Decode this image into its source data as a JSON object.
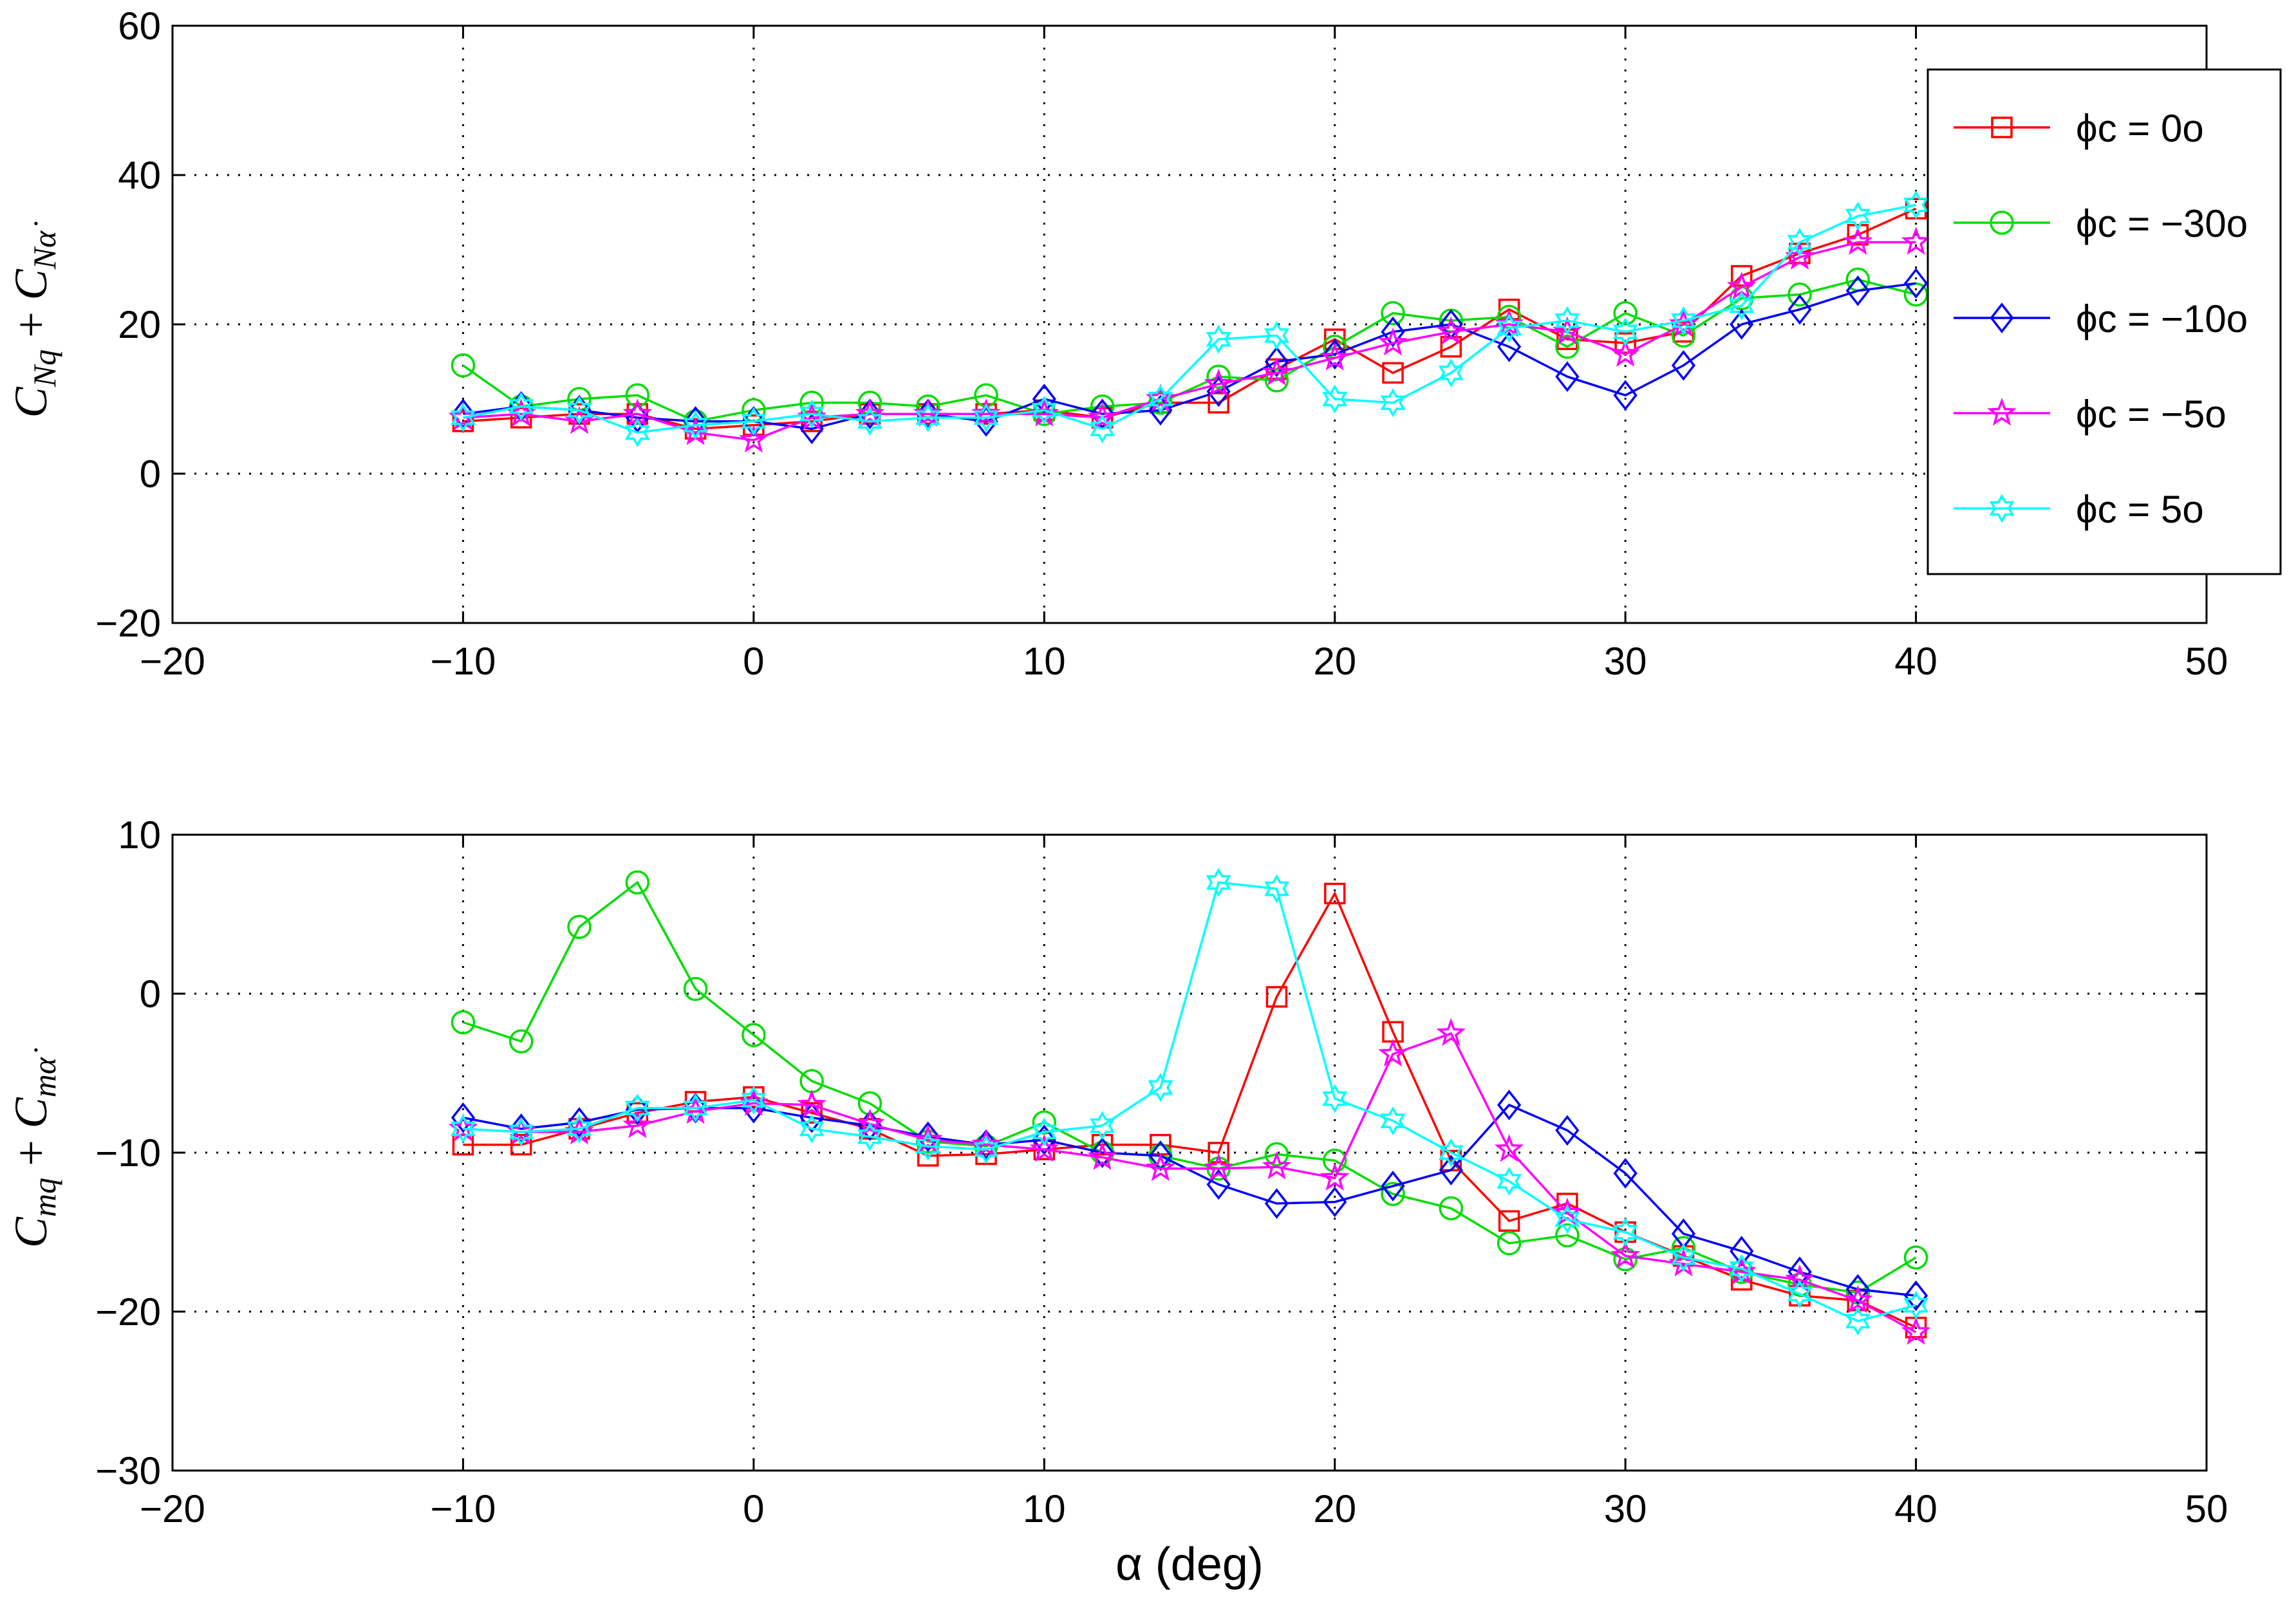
{
  "chart_data": [
    {
      "type": "line",
      "ylabel": "C_Nq + C_Nα̇",
      "xlabel": "",
      "xlim": [
        -20,
        50
      ],
      "ylim": [
        -20,
        60
      ],
      "xticks": [
        "−20",
        "−10",
        "0",
        "10",
        "20",
        "30",
        "40",
        "50"
      ],
      "yticks": [
        "−20",
        "0",
        "20",
        "40",
        "60"
      ],
      "grid": true,
      "legend_position": "top-right",
      "x": [
        -10,
        -8,
        -6,
        -4,
        -2,
        0,
        2,
        4,
        6,
        8,
        10,
        12,
        14,
        16,
        18,
        20,
        22,
        24,
        26,
        28,
        30,
        32,
        34,
        36,
        38,
        40
      ],
      "series": [
        {
          "name": "φc = 0°",
          "color": "#ff0000",
          "marker": "square",
          "values": [
            7,
            7.5,
            8,
            8,
            6,
            6.5,
            7,
            8,
            8,
            8,
            8.5,
            7.5,
            9.5,
            9.5,
            14,
            18,
            13.5,
            17,
            22,
            18,
            17.5,
            19,
            26.5,
            29.5,
            32,
            35.5
          ]
        },
        {
          "name": "φc = −30°",
          "color": "#00dd00",
          "marker": "circle",
          "values": [
            14.5,
            9,
            10,
            10.5,
            7,
            8.5,
            9.5,
            9.5,
            9,
            10.5,
            8,
            9,
            9.5,
            13,
            12.5,
            17,
            21.5,
            20.5,
            21,
            17,
            21.5,
            18.5,
            23.5,
            24,
            26,
            24
          ]
        },
        {
          "name": "φc = −10°",
          "color": "#0000ff",
          "marker": "diamond",
          "values": [
            8,
            9,
            8.5,
            7.5,
            7,
            7,
            6,
            8,
            8,
            7,
            10,
            8,
            8.5,
            11,
            15,
            16,
            19,
            20,
            17,
            13,
            10.5,
            14.5,
            20,
            22,
            24.5,
            25.5
          ]
        },
        {
          "name": "φc = −5°",
          "color": "#ff00ff",
          "marker": "star",
          "values": [
            7.5,
            8,
            7,
            8,
            5.5,
            4.5,
            7.5,
            8,
            8,
            8,
            8,
            7.5,
            10,
            12,
            13.5,
            15.5,
            17.5,
            19,
            20,
            19,
            16,
            20,
            25,
            29,
            31,
            31
          ]
        },
        {
          "name": "φc = 5°",
          "color": "#00ffff",
          "marker": "hexagram",
          "values": [
            7.5,
            9,
            8.5,
            5.5,
            6.5,
            7,
            8,
            7,
            7.5,
            7.5,
            8.5,
            6,
            10,
            18,
            18.5,
            10,
            9.5,
            13.5,
            19.5,
            20.5,
            19,
            20.5,
            22.5,
            31,
            34.5,
            36
          ]
        }
      ]
    },
    {
      "type": "line",
      "ylabel": "C_mq + C_mα̇",
      "xlabel": "α (deg)",
      "xlim": [
        -20,
        50
      ],
      "ylim": [
        -30,
        10
      ],
      "xticks": [
        "−20",
        "−10",
        "0",
        "10",
        "20",
        "30",
        "40",
        "50"
      ],
      "yticks": [
        "−30",
        "−20",
        "−10",
        "0",
        "10"
      ],
      "grid": true,
      "x": [
        -10,
        -8,
        -6,
        -4,
        -2,
        0,
        2,
        4,
        6,
        8,
        10,
        12,
        14,
        16,
        18,
        20,
        22,
        24,
        26,
        28,
        30,
        32,
        34,
        36,
        38,
        40
      ],
      "series": [
        {
          "name": "φc = 0°",
          "color": "#ff0000",
          "marker": "square",
          "values": [
            -9.5,
            -9.5,
            -8.5,
            -7.5,
            -6.8,
            -6.5,
            -7.5,
            -8.5,
            -10.2,
            -10.1,
            -9.8,
            -9.5,
            -9.5,
            -10,
            -0.2,
            6.3,
            -2.4,
            -10.5,
            -14.3,
            -13.2,
            -15,
            -16.5,
            -18,
            -19,
            -19.3,
            -21
          ]
        },
        {
          "name": "φc = −30°",
          "color": "#00dd00",
          "marker": "circle",
          "values": [
            -1.8,
            -3,
            4.2,
            7,
            0.3,
            -2.6,
            -5.5,
            -6.9,
            -9.3,
            -9.6,
            -8.1,
            -10,
            -10.2,
            -11,
            -10.1,
            -10.5,
            -12.6,
            -13.5,
            -15.7,
            -15.2,
            -16.7,
            -16,
            -17.5,
            -18.3,
            -18.8,
            -16.6
          ]
        },
        {
          "name": "φc = −10°",
          "color": "#0000ff",
          "marker": "diamond",
          "values": [
            -7.8,
            -8.5,
            -8.1,
            -7.3,
            -7.2,
            -7.2,
            -7.8,
            -8.3,
            -9,
            -9.5,
            -9.2,
            -10,
            -10.2,
            -12,
            -13.2,
            -13.1,
            -12.1,
            -11.1,
            -7,
            -8.6,
            -11.3,
            -15.1,
            -16.2,
            -17.5,
            -18.6,
            -19
          ]
        },
        {
          "name": "φc = −5°",
          "color": "#ff00ff",
          "marker": "star",
          "values": [
            -8.5,
            -8.7,
            -8.7,
            -8.3,
            -7.4,
            -6.9,
            -7,
            -8.2,
            -9.2,
            -9.5,
            -9.8,
            -10.3,
            -11,
            -11,
            -10.9,
            -11.6,
            -3.8,
            -2.5,
            -9.8,
            -13.8,
            -16.5,
            -17,
            -17.5,
            -18,
            -19.3,
            -21.3
          ]
        },
        {
          "name": "φc = 5°",
          "color": "#00ffff",
          "marker": "hexagram",
          "values": [
            -8.5,
            -8.7,
            -8.5,
            -7.2,
            -7.2,
            -6.7,
            -8.5,
            -9,
            -9.6,
            -9.8,
            -8.7,
            -8.3,
            -5.9,
            7,
            6.6,
            -6.6,
            -8,
            -10,
            -11.8,
            -14.2,
            -15,
            -16.6,
            -17.3,
            -18.9,
            -20.6,
            -19.6
          ]
        }
      ]
    }
  ],
  "legend": {
    "entries": [
      {
        "label": "ϕc = 0o",
        "color": "#ff0000",
        "marker": "square"
      },
      {
        "label": "ϕc = −30o",
        "color": "#00dd00",
        "marker": "circle"
      },
      {
        "label": "ϕc = −10o",
        "color": "#0000ff",
        "marker": "diamond"
      },
      {
        "label": "ϕc = −5o",
        "color": "#ff00ff",
        "marker": "star"
      },
      {
        "label": "ϕc = 5o",
        "color": "#00ffff",
        "marker": "hexagram"
      }
    ]
  }
}
